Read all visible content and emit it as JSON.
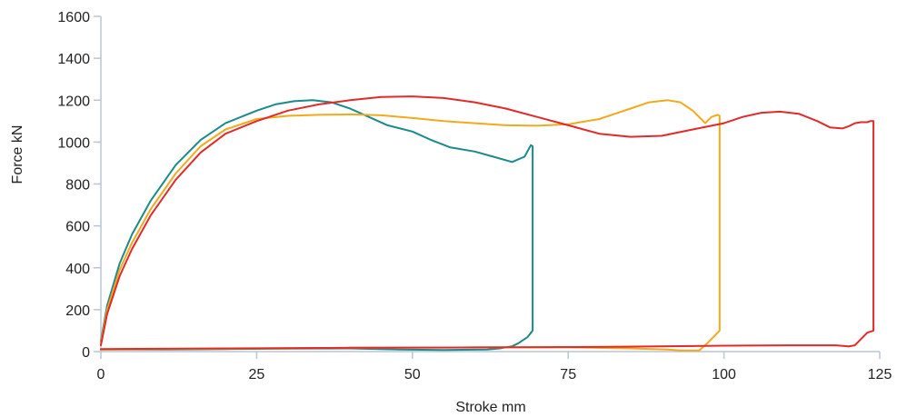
{
  "chart_data": {
    "type": "line",
    "title": "",
    "xlabel": "Stroke mm",
    "ylabel": "Force kN",
    "xlim": [
      0,
      125
    ],
    "ylim": [
      0,
      1600
    ],
    "x_ticks": [
      0,
      25,
      50,
      75,
      100,
      125
    ],
    "y_ticks": [
      0,
      200,
      400,
      600,
      800,
      1000,
      1200,
      1400,
      1600
    ],
    "x_tick_labels": [
      "0",
      "25",
      "50",
      "75",
      "100",
      "125"
    ],
    "y_tick_labels": [
      "0",
      "200",
      "400",
      "600",
      "800",
      "1000",
      "1200",
      "1400",
      "1600"
    ],
    "grid": false,
    "legend": "none",
    "series": [
      {
        "color": "#1a8a8c",
        "points": [
          [
            0,
            50
          ],
          [
            1,
            220
          ],
          [
            3,
            420
          ],
          [
            5,
            560
          ],
          [
            8,
            720
          ],
          [
            12,
            890
          ],
          [
            16,
            1010
          ],
          [
            20,
            1090
          ],
          [
            25,
            1150
          ],
          [
            28,
            1180
          ],
          [
            31,
            1195
          ],
          [
            34,
            1200
          ],
          [
            37,
            1190
          ],
          [
            40,
            1160
          ],
          [
            43,
            1120
          ],
          [
            46,
            1080
          ],
          [
            50,
            1050
          ],
          [
            53,
            1010
          ],
          [
            56,
            975
          ],
          [
            60,
            955
          ],
          [
            63,
            930
          ],
          [
            66,
            905
          ],
          [
            68,
            930
          ],
          [
            69,
            985
          ],
          [
            69.3,
            980
          ],
          [
            69.3,
            100
          ],
          [
            68.5,
            70
          ],
          [
            67,
            40
          ],
          [
            66,
            25
          ],
          [
            64,
            15
          ],
          [
            62,
            10
          ],
          [
            55,
            8
          ],
          [
            48,
            10
          ],
          [
            40,
            15
          ],
          [
            30,
            14
          ],
          [
            20,
            12
          ],
          [
            10,
            10
          ],
          [
            0,
            10
          ]
        ]
      },
      {
        "color": "#f2a91c",
        "points": [
          [
            0,
            40
          ],
          [
            1,
            200
          ],
          [
            3,
            390
          ],
          [
            5,
            520
          ],
          [
            8,
            680
          ],
          [
            12,
            850
          ],
          [
            16,
            980
          ],
          [
            20,
            1060
          ],
          [
            25,
            1110
          ],
          [
            30,
            1125
          ],
          [
            35,
            1130
          ],
          [
            40,
            1132
          ],
          [
            45,
            1128
          ],
          [
            50,
            1115
          ],
          [
            55,
            1100
          ],
          [
            60,
            1090
          ],
          [
            65,
            1080
          ],
          [
            70,
            1078
          ],
          [
            75,
            1085
          ],
          [
            80,
            1110
          ],
          [
            85,
            1160
          ],
          [
            88,
            1190
          ],
          [
            91,
            1200
          ],
          [
            93,
            1190
          ],
          [
            95,
            1150
          ],
          [
            97,
            1090
          ],
          [
            98,
            1120
          ],
          [
            99,
            1130
          ],
          [
            99.3,
            1125
          ],
          [
            99.3,
            100
          ],
          [
            98,
            60
          ],
          [
            97,
            30
          ],
          [
            96,
            5
          ],
          [
            93,
            5
          ],
          [
            91,
            10
          ],
          [
            85,
            15
          ],
          [
            75,
            20
          ],
          [
            60,
            20
          ],
          [
            40,
            18
          ],
          [
            20,
            14
          ],
          [
            10,
            12
          ],
          [
            0,
            10
          ]
        ]
      },
      {
        "color": "#e32a2a",
        "points": [
          [
            0,
            30
          ],
          [
            1,
            180
          ],
          [
            3,
            360
          ],
          [
            5,
            490
          ],
          [
            8,
            650
          ],
          [
            12,
            820
          ],
          [
            16,
            950
          ],
          [
            20,
            1040
          ],
          [
            25,
            1100
          ],
          [
            30,
            1150
          ],
          [
            35,
            1180
          ],
          [
            40,
            1200
          ],
          [
            45,
            1215
          ],
          [
            50,
            1218
          ],
          [
            55,
            1210
          ],
          [
            60,
            1190
          ],
          [
            65,
            1160
          ],
          [
            70,
            1120
          ],
          [
            75,
            1080
          ],
          [
            80,
            1040
          ],
          [
            85,
            1025
          ],
          [
            90,
            1030
          ],
          [
            95,
            1060
          ],
          [
            100,
            1090
          ],
          [
            103,
            1120
          ],
          [
            106,
            1140
          ],
          [
            109,
            1145
          ],
          [
            112,
            1135
          ],
          [
            115,
            1100
          ],
          [
            117,
            1070
          ],
          [
            119,
            1065
          ],
          [
            120,
            1075
          ],
          [
            121,
            1090
          ],
          [
            122,
            1095
          ],
          [
            123,
            1095
          ],
          [
            123.5,
            1100
          ],
          [
            124,
            1100
          ],
          [
            124,
            100
          ],
          [
            123,
            90
          ],
          [
            122,
            60
          ],
          [
            121,
            30
          ],
          [
            120,
            25
          ],
          [
            118,
            30
          ],
          [
            110,
            30
          ],
          [
            100,
            28
          ],
          [
            80,
            22
          ],
          [
            60,
            20
          ],
          [
            40,
            18
          ],
          [
            20,
            15
          ],
          [
            0,
            12
          ]
        ]
      }
    ]
  }
}
